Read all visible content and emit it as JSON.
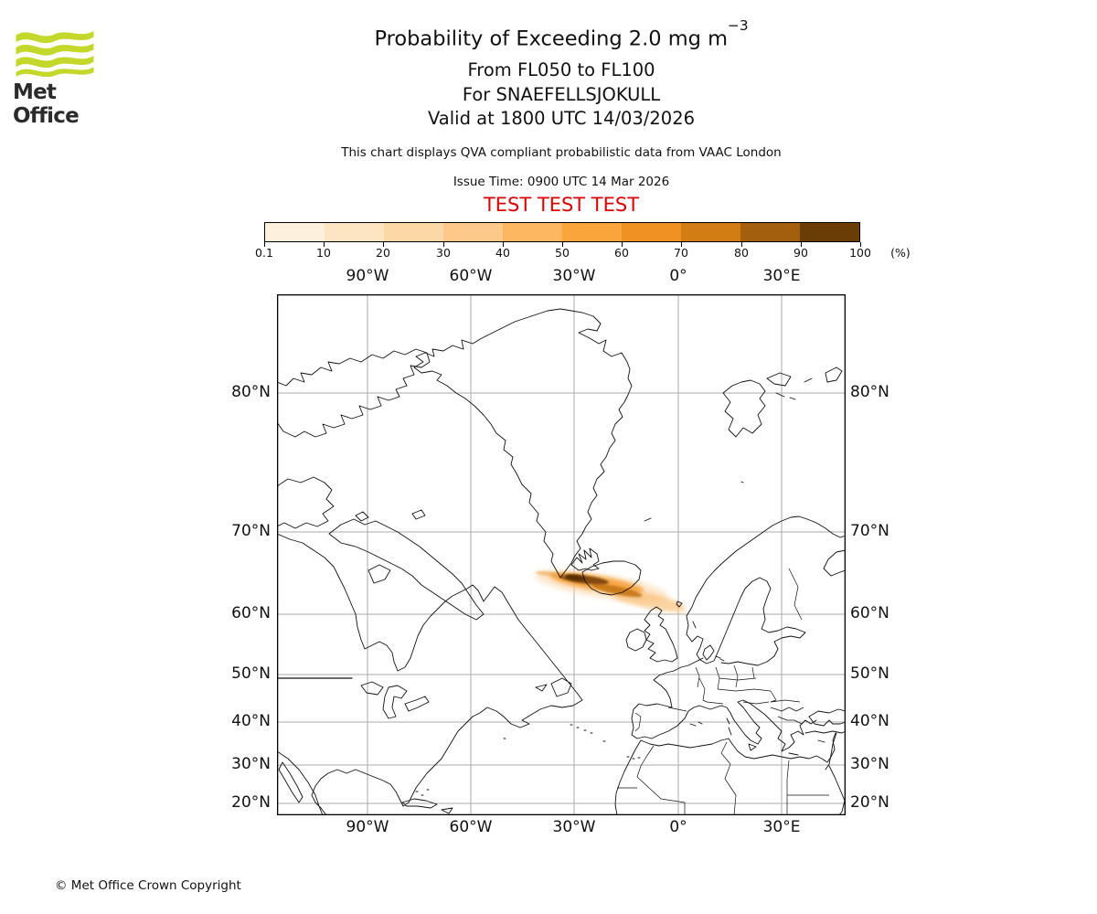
{
  "branding": {
    "logo_text": "Met Office",
    "logo_wave_color": "#c3d82b"
  },
  "header": {
    "title_base": "Probability of Exceeding 2.0 mg m",
    "title_exponent": "−3",
    "subtitle_flight_levels": "From FL050 to FL100",
    "subtitle_volcano": "For SNAEFELLSJOKULL",
    "subtitle_valid": "Valid at 1800 UTC 14/03/2026",
    "description": "This chart displays QVA compliant probabilistic data from VAAC London",
    "issue_time": "Issue Time: 0900 UTC 14 Mar 2026",
    "test_banner": "TEST TEST TEST",
    "test_banner_color": "#dd0000"
  },
  "colorbar": {
    "tick_labels": [
      "0.1",
      "10",
      "20",
      "30",
      "40",
      "50",
      "60",
      "70",
      "80",
      "90",
      "100"
    ],
    "unit_label": "(%)",
    "segment_colors": [
      "#fdf1de",
      "#fde4c3",
      "#fdd8a7",
      "#fdc98b",
      "#fdb761",
      "#faa43c",
      "#ef9123",
      "#d27c14",
      "#a35f0e",
      "#693d05"
    ]
  },
  "map": {
    "top_axis_labels": [
      "90°W",
      "60°W",
      "30°W",
      "0°",
      "30°E"
    ],
    "bottom_axis_labels": [
      "90°W",
      "60°W",
      "30°W",
      "0°",
      "30°E"
    ],
    "left_axis_labels": [
      "80°N",
      "70°N",
      "60°N",
      "50°N",
      "40°N",
      "30°N",
      "20°N"
    ],
    "right_axis_labels": [
      "80°N",
      "70°N",
      "60°N",
      "50°N",
      "40°N",
      "30°N",
      "20°N"
    ],
    "gridline_color": "#ababab",
    "ash_plume": {
      "description": "Elongated ash-probability plume extending ESE from just west of Iceland towards the Faroe Islands, darkest (highest probability) immediately south-west of Iceland",
      "approx_extent": {
        "west": "33°W",
        "east": "5°W",
        "north": "66°N",
        "south": "61°N"
      },
      "max_probability_band": "90-100%"
    }
  },
  "footer": {
    "copyright": "© Met Office Crown Copyright"
  }
}
